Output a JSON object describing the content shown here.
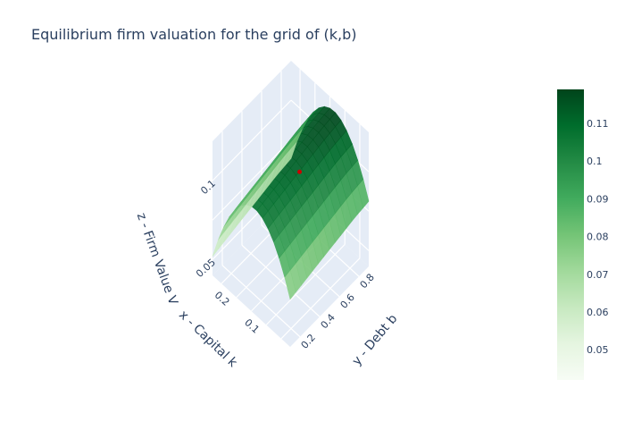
{
  "chart_data": {
    "type": "surface",
    "title": "Equilibrium firm valuation for the grid of (k,b)",
    "x_axis": {
      "label": "x - Capital k",
      "ticks": [
        "0.1",
        "0.2"
      ],
      "range": [
        0.02,
        0.28
      ]
    },
    "y_axis": {
      "label": "y - Debt b",
      "ticks": [
        "0.2",
        "0.4",
        "0.6",
        "0.8"
      ],
      "range": [
        0.1,
        0.9
      ]
    },
    "z_axis": {
      "label": "z - Firm Value V",
      "ticks": [
        "0.05",
        "0.1"
      ],
      "range": [
        0.04,
        0.125
      ]
    },
    "colorscale": "Greens",
    "colorbar": {
      "ticks": [
        "0.05",
        "0.06",
        "0.07",
        "0.08",
        "0.09",
        "0.1",
        "0.11"
      ],
      "range": [
        0.042,
        0.119
      ]
    },
    "marker_point": {
      "k": 0.12,
      "b": 0.5,
      "v": 0.108,
      "color": "#cc0000"
    },
    "colors": {
      "background": "#e5ecf6",
      "grid": "#ffffff",
      "text": "#2a3f5f"
    }
  }
}
